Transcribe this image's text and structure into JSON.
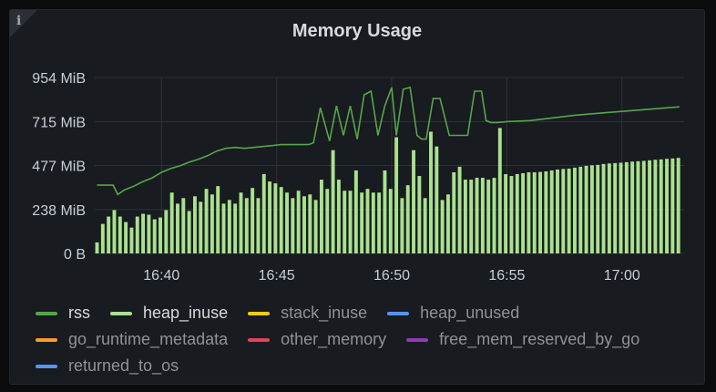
{
  "panel": {
    "title": "Memory Usage"
  },
  "colors": {
    "rss": "#56a64b",
    "heap_inuse": "#a9e18f",
    "grid": "#2f3237"
  },
  "legend": [
    [
      {
        "label": "rss",
        "color": "#56a64b",
        "active": true
      },
      {
        "label": "heap_inuse",
        "color": "#a9e18f",
        "active": true
      },
      {
        "label": "stack_inuse",
        "color": "#f2cc0c",
        "active": false
      },
      {
        "label": "heap_unused",
        "color": "#5794f2",
        "active": false
      }
    ],
    [
      {
        "label": "go_runtime_metadata",
        "color": "#ff9830",
        "active": false
      },
      {
        "label": "other_memory",
        "color": "#e0435b",
        "active": false
      },
      {
        "label": "free_mem_reserved_by_go",
        "color": "#8f3bb8",
        "active": false
      }
    ],
    [
      {
        "label": "returned_to_os",
        "color": "#5794f2",
        "active": false
      }
    ]
  ],
  "chart_data": {
    "type": "bar",
    "x_unit": "minutes",
    "x_ticks": [
      {
        "label": "16:40",
        "x": 0
      },
      {
        "label": "16:45",
        "x": 5
      },
      {
        "label": "16:50",
        "x": 10
      },
      {
        "label": "16:55",
        "x": 15
      },
      {
        "label": "17:00",
        "x": 20
      }
    ],
    "y_ticks": [
      {
        "label": "0 B",
        "v": 0
      },
      {
        "label": "238 MiB",
        "v": 238
      },
      {
        "label": "477 MiB",
        "v": 477
      },
      {
        "label": "715 MiB",
        "v": 715
      },
      {
        "label": "954 MiB",
        "v": 954
      }
    ],
    "ylim": [
      0,
      954
    ],
    "xlim": [
      -2.9,
      22.7
    ],
    "series": [
      {
        "name": "heap_inuse",
        "style": "bars",
        "x": [
          -2.8,
          -2.55,
          -2.3,
          -2.05,
          -1.8,
          -1.55,
          -1.3,
          -1.05,
          -0.8,
          -0.55,
          -0.3,
          -0.05,
          0.2,
          0.45,
          0.7,
          0.95,
          1.2,
          1.45,
          1.7,
          1.95,
          2.2,
          2.45,
          2.7,
          2.95,
          3.2,
          3.45,
          3.7,
          3.95,
          4.2,
          4.45,
          4.7,
          4.95,
          5.2,
          5.45,
          5.7,
          5.95,
          6.2,
          6.45,
          6.7,
          6.95,
          7.2,
          7.45,
          7.7,
          7.95,
          8.2,
          8.45,
          8.7,
          8.95,
          9.2,
          9.45,
          9.7,
          9.95,
          10.2,
          10.45,
          10.7,
          10.95,
          11.2,
          11.45,
          11.7,
          11.95,
          12.2,
          12.45,
          12.7,
          12.95,
          13.2,
          13.45,
          13.7,
          13.95,
          14.2,
          14.45,
          14.7,
          14.95,
          15.2,
          15.45,
          15.7,
          15.95,
          16.2,
          16.45,
          16.7,
          16.95,
          17.2,
          17.45,
          17.7,
          17.95,
          18.2,
          18.45,
          18.7,
          18.95,
          19.2,
          19.45,
          19.7,
          19.95,
          20.2,
          20.45,
          20.7,
          20.95,
          21.2,
          21.45,
          21.7,
          21.95,
          22.2,
          22.45
        ],
        "values": [
          60,
          160,
          200,
          235,
          200,
          170,
          140,
          200,
          215,
          210,
          185,
          195,
          235,
          330,
          270,
          300,
          230,
          310,
          280,
          350,
          320,
          365,
          270,
          290,
          270,
          330,
          300,
          355,
          300,
          430,
          390,
          380,
          360,
          330,
          300,
          340,
          310,
          320,
          290,
          400,
          350,
          560,
          400,
          340,
          340,
          450,
          330,
          350,
          330,
          330,
          450,
          350,
          630,
          300,
          370,
          560,
          420,
          300,
          660,
          580,
          290,
          320,
          440,
          470,
          400,
          400,
          410,
          410,
          400,
          410,
          680,
          430,
          420,
          430,
          435,
          440,
          440,
          442,
          445,
          450,
          455,
          458,
          460,
          465,
          470,
          475,
          478,
          480,
          485,
          488,
          490,
          492,
          495,
          498,
          500,
          502,
          505,
          508,
          510,
          513,
          515,
          518
        ]
      },
      {
        "name": "rss",
        "style": "line",
        "x": [
          -2.8,
          -2.1,
          -1.9,
          -1.6,
          -1.2,
          -0.8,
          -0.4,
          0,
          0.4,
          0.8,
          1.2,
          1.6,
          2,
          2.4,
          2.8,
          3.2,
          3.6,
          4,
          4.4,
          4.8,
          5.2,
          5.6,
          6,
          6.4,
          6.6,
          6.9,
          7.3,
          7.6,
          7.9,
          8.2,
          8.5,
          8.8,
          9.1,
          9.4,
          9.7,
          10,
          10.2,
          10.5,
          10.8,
          11.1,
          11.3,
          11.5,
          11.8,
          12.1,
          12.5,
          12.9,
          13.3,
          13.6,
          13.9,
          14.1,
          14.3,
          14.6,
          15,
          16,
          17,
          18,
          19,
          20,
          21,
          22,
          22.5
        ],
        "values": [
          370,
          370,
          320,
          345,
          365,
          390,
          410,
          440,
          460,
          475,
          495,
          510,
          530,
          555,
          570,
          575,
          570,
          575,
          580,
          585,
          590,
          590,
          590,
          590,
          600,
          790,
          610,
          800,
          640,
          800,
          620,
          860,
          880,
          640,
          800,
          900,
          640,
          890,
          900,
          640,
          620,
          620,
          840,
          840,
          640,
          640,
          640,
          880,
          880,
          720,
          710,
          710,
          715,
          720,
          735,
          750,
          760,
          770,
          780,
          790,
          795
        ]
      }
    ]
  }
}
